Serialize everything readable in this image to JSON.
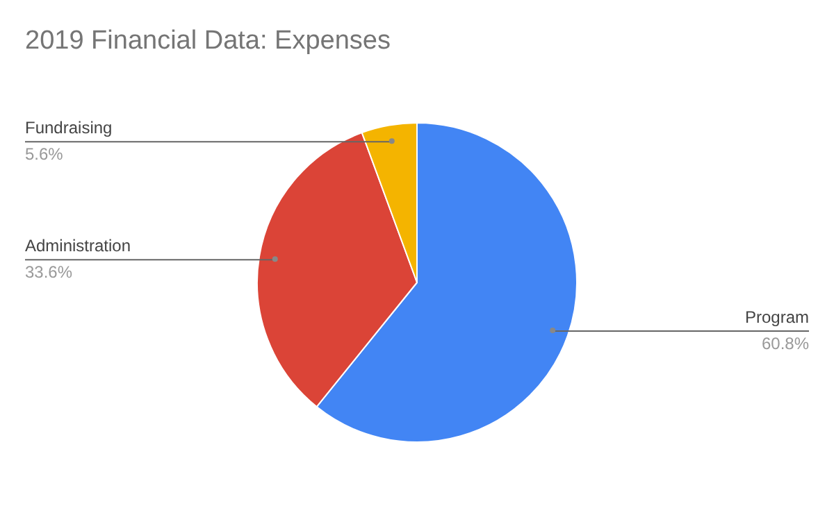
{
  "chart_data": {
    "type": "pie",
    "title": "2019 Financial Data: Expenses",
    "categories": [
      "Program",
      "Administration",
      "Fundraising"
    ],
    "values": [
      60.8,
      33.6,
      5.6
    ],
    "colors": [
      "#4285f4",
      "#db4437",
      "#f4b400"
    ],
    "value_labels": [
      "60.8%",
      "33.6%",
      "5.6%"
    ],
    "legend": false
  }
}
